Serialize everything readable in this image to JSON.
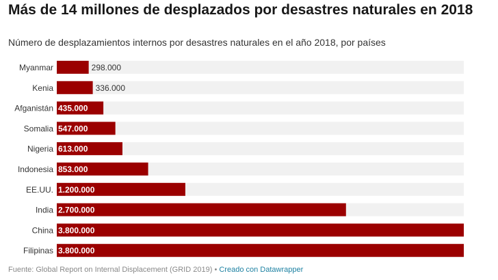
{
  "title": "Más de 14 millones de desplazados por desastres naturales en 2018",
  "subtitle": "Número de desplazamientos internos por desastres naturales en el año 2018, por países",
  "footer": {
    "source": "Fuente: Global Report on Internal Displacement (GRID 2019)",
    "separator": "•",
    "credit": "Creado con Datawrapper"
  },
  "colors": {
    "bar": "#9b0000",
    "track": "#f1f1f1"
  },
  "chart_data": {
    "type": "bar",
    "orientation": "horizontal",
    "categories": [
      "Myanmar",
      "Kenia",
      "Afganistán",
      "Somalia",
      "Nigeria",
      "Indonesia",
      "EE.UU.",
      "India",
      "China",
      "Filipinas"
    ],
    "values": [
      298000,
      336000,
      435000,
      547000,
      613000,
      853000,
      1200000,
      2700000,
      3800000,
      3800000
    ],
    "labels": [
      "298.000",
      "336.000",
      "435.000",
      "547.000",
      "613.000",
      "853.000",
      "1.200.000",
      "2.700.000",
      "3.800.000",
      "3.800.000"
    ],
    "xlim": [
      0,
      3800000
    ],
    "title": "Más de 14 millones de desplazados por desastres naturales en 2018",
    "xlabel": "",
    "ylabel": ""
  }
}
